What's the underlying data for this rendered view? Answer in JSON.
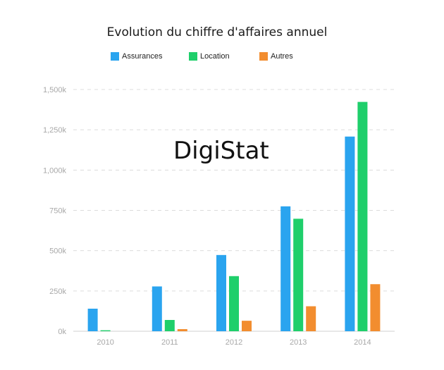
{
  "watermark": "DigiStat",
  "chart_data": {
    "type": "bar",
    "title": "Evolution du chiffre d'affaires annuel",
    "xlabel": "",
    "ylabel": "",
    "categories": [
      "2010",
      "2011",
      "2012",
      "2013",
      "2014"
    ],
    "series": [
      {
        "name": "Assurances",
        "color": "#2aa4ef",
        "values": [
          140,
          278,
          473,
          775,
          1208
        ]
      },
      {
        "name": "Location",
        "color": "#1fcf6b",
        "values": [
          6,
          70,
          342,
          698,
          1423
        ]
      },
      {
        "name": "Autres",
        "color": "#f28d2f",
        "values": [
          0,
          13,
          65,
          155,
          292
        ]
      }
    ],
    "ylim": [
      0,
      1500
    ],
    "yticks": [
      0,
      250,
      500,
      750,
      1000,
      1250,
      1500
    ],
    "ytick_labels": [
      "0k",
      "250k",
      "500k",
      "750k",
      "1,000k",
      "1,250k",
      "1,500k"
    ],
    "grid": true,
    "legend_position": "top-left"
  }
}
